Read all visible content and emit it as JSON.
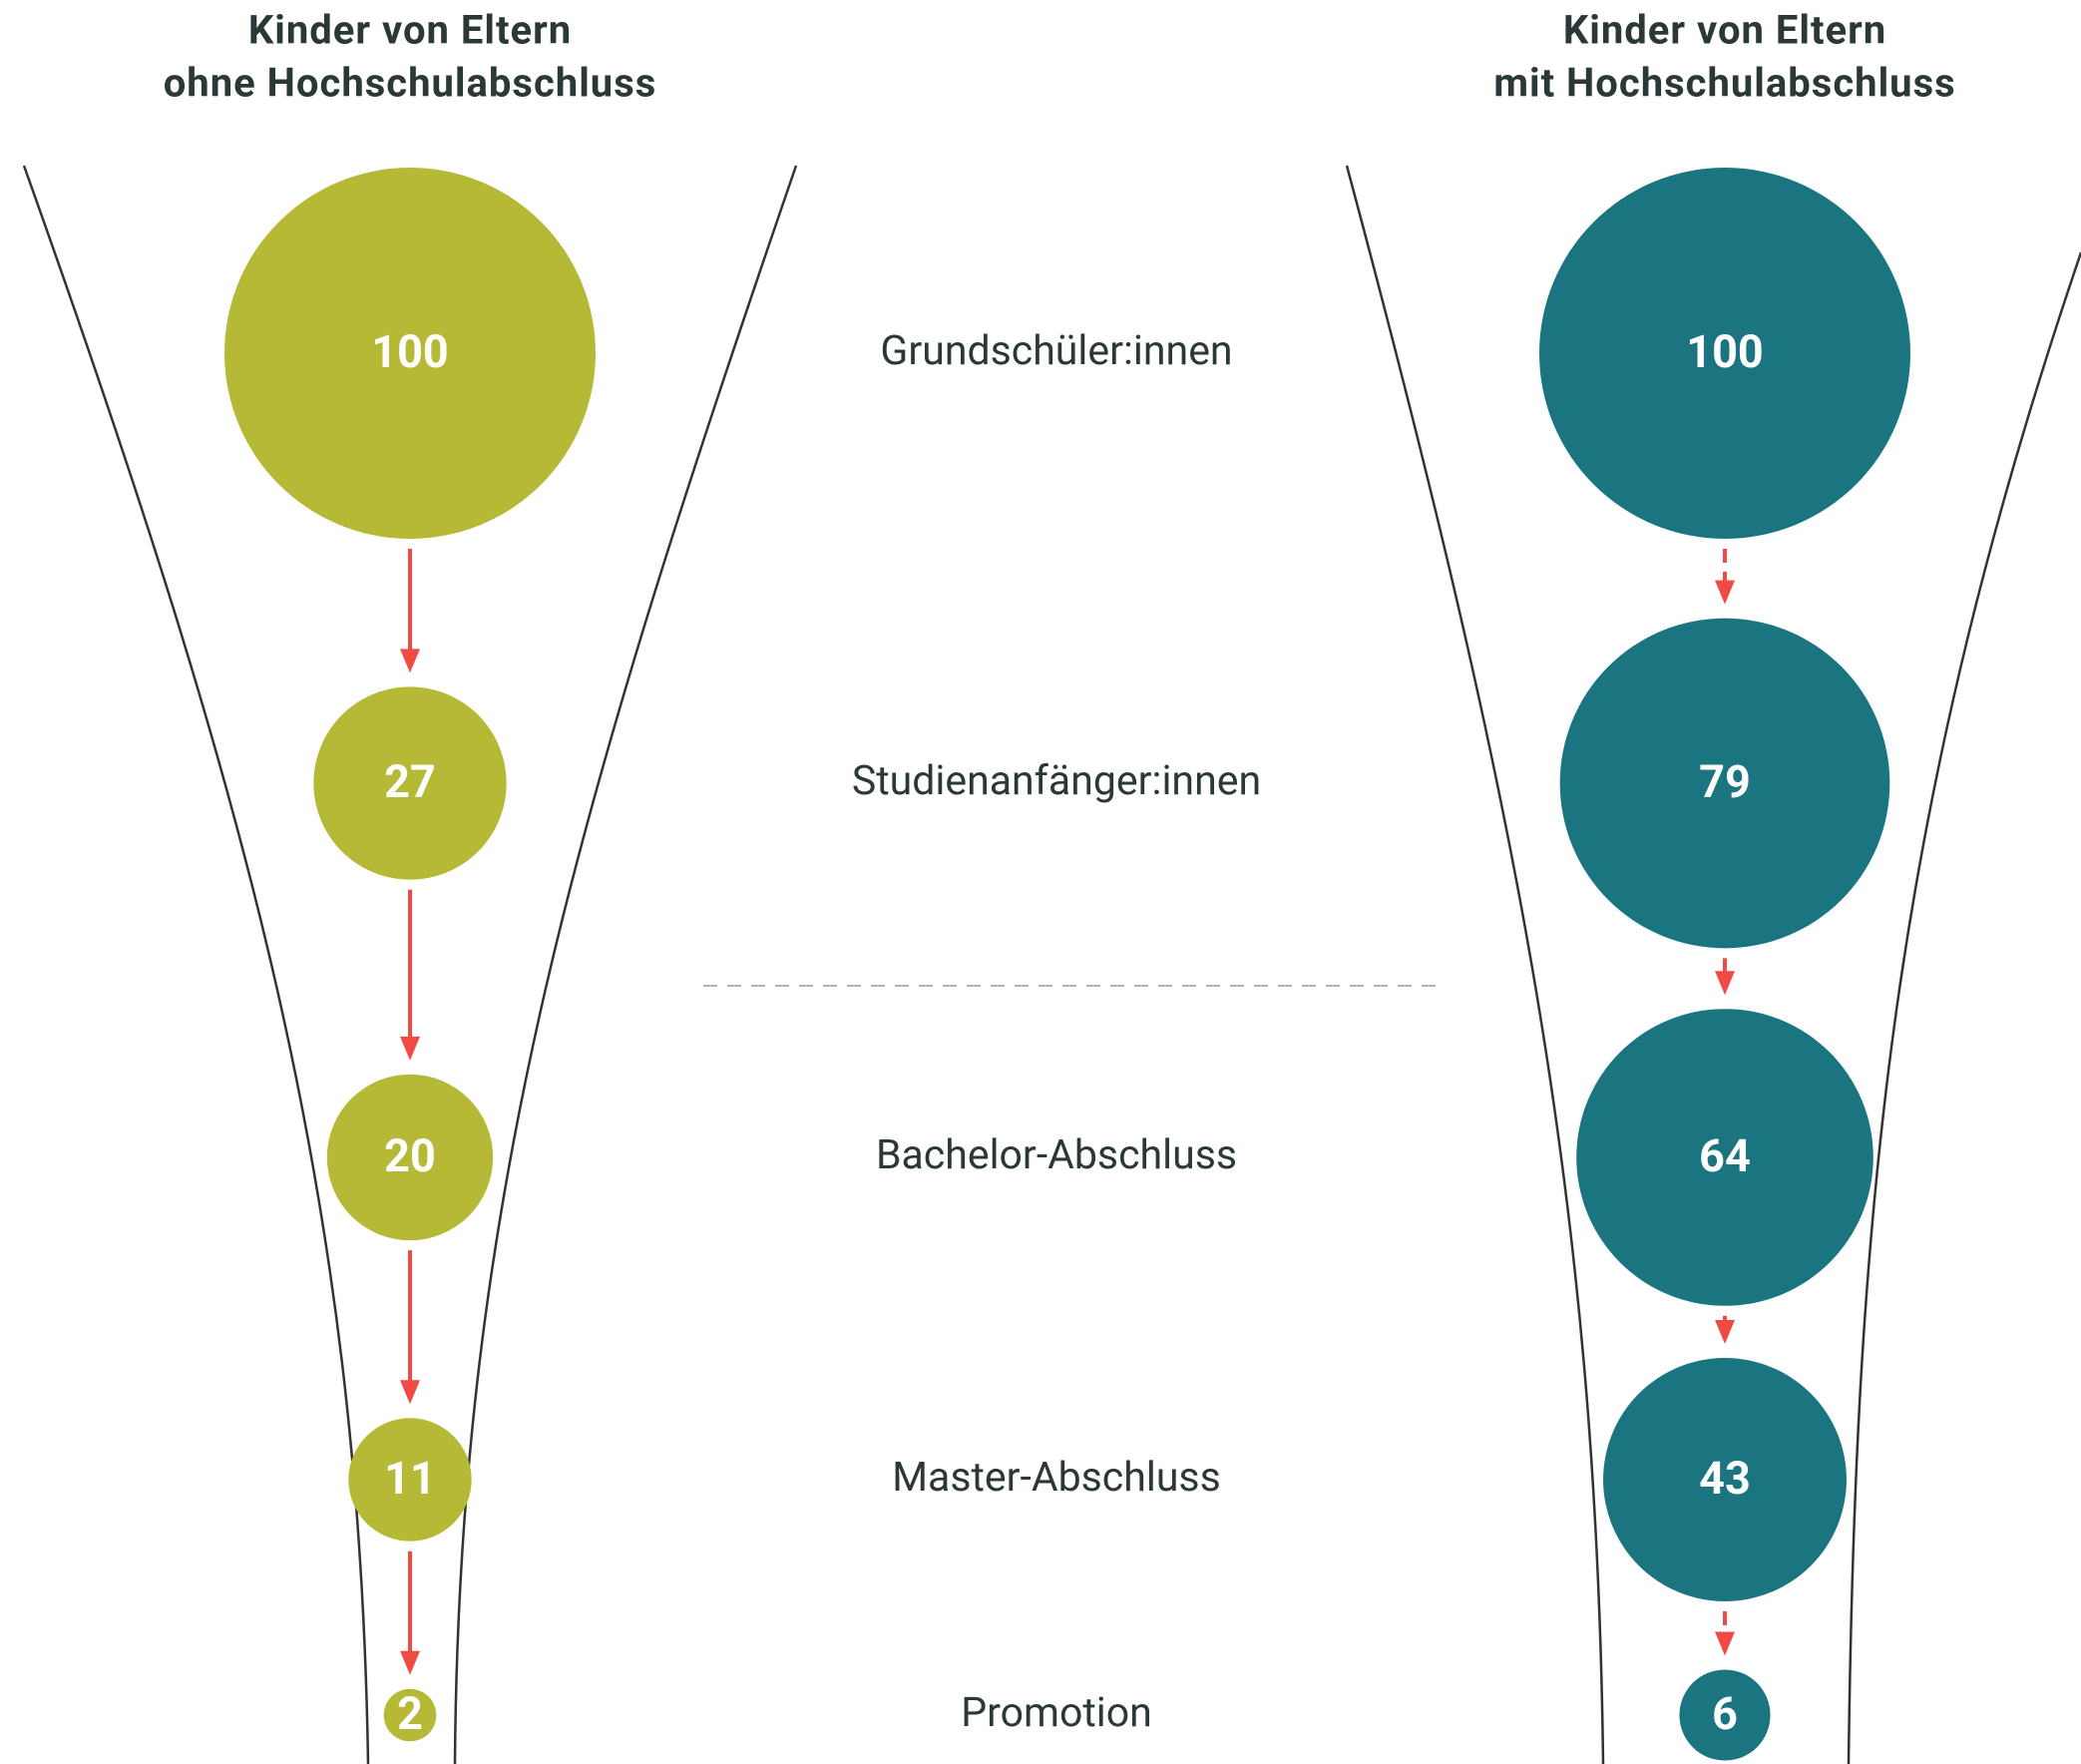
{
  "chart_data": {
    "type": "bubble_funnel",
    "categories": [
      "Grundschüler:innen",
      "Studienanfänger:innen",
      "Bachelor-Abschluss",
      "Master-Abschluss",
      "Promotion"
    ],
    "series": [
      {
        "name": [
          "Kinder von Eltern",
          "ohne Hochschulabschluss"
        ],
        "color": "#b5b935",
        "arrow": "solid",
        "values": [
          100,
          27,
          20,
          11,
          2
        ]
      },
      {
        "name": [
          "Kinder von Eltern",
          "mit Hochschulabschluss"
        ],
        "color": "#1a7580",
        "arrow": "dashed",
        "values": [
          100,
          79,
          64,
          43,
          6
        ]
      }
    ]
  }
}
